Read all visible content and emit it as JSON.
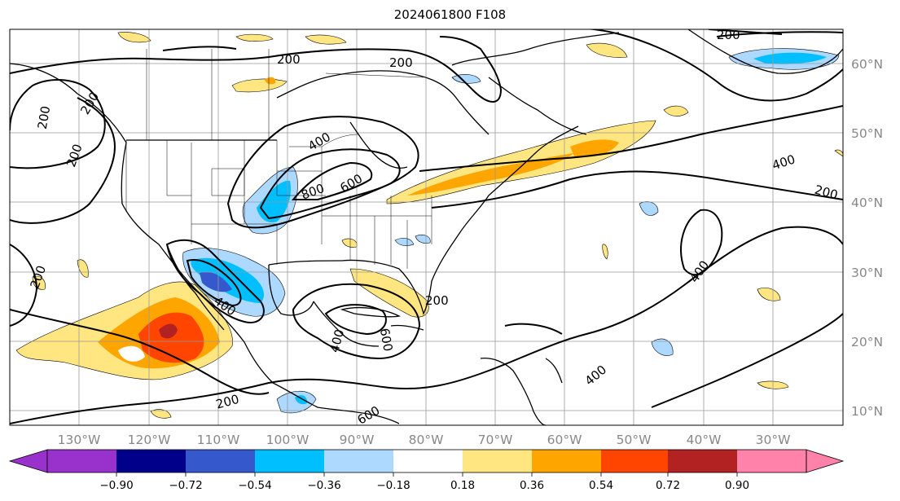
{
  "title": "2024061800 F108",
  "map": {
    "projection": "Lambert conformal, North America / Atlantic",
    "contour_levels_shown": [
      "200",
      "400",
      "600",
      "800"
    ],
    "contour_color": "#000000",
    "grid": true,
    "land_fill": "none",
    "longitude_labels": [
      "130°W",
      "120°W",
      "110°W",
      "100°W",
      "90°W",
      "80°W",
      "70°W",
      "60°W",
      "50°W",
      "40°W",
      "30°W"
    ],
    "latitude_labels": [
      "60°N",
      "50°N",
      "40°N",
      "30°N",
      "20°N",
      "10°N"
    ],
    "contour_labels": [
      {
        "text": "200"
      },
      {
        "text": "200"
      },
      {
        "text": "200"
      },
      {
        "text": "200"
      },
      {
        "text": "200"
      },
      {
        "text": "200"
      },
      {
        "text": "200"
      },
      {
        "text": "200"
      },
      {
        "text": "200"
      },
      {
        "text": "200"
      },
      {
        "text": "400"
      },
      {
        "text": "400"
      },
      {
        "text": "400"
      },
      {
        "text": "400"
      },
      {
        "text": "400"
      },
      {
        "text": "400"
      },
      {
        "text": "600"
      },
      {
        "text": "600"
      },
      {
        "text": "800"
      },
      {
        "text": "600"
      }
    ]
  },
  "colorbar": {
    "extend": "both",
    "ticks": [
      "−0.90",
      "−0.72",
      "−0.54",
      "−0.36",
      "−0.18",
      "0.18",
      "0.36",
      "0.54",
      "0.72",
      "0.90"
    ],
    "colors": [
      "#9932cc",
      "#00008b",
      "#3558cc",
      "#00bfff",
      "#add8ff",
      "#ffffff",
      "#ffe680",
      "#ffa500",
      "#ff4500",
      "#b22222",
      "#ff82aa"
    ]
  }
}
